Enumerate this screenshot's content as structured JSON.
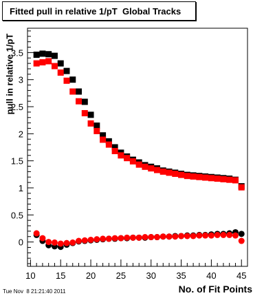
{
  "chart_data": {
    "type": "scatter",
    "title": "Fitted pull in relative 1/pT  Global Tracks",
    "xlabel": "No. of Fit Points",
    "ylabel": "pull in relative 1/pT",
    "xlim": [
      9.5,
      46
    ],
    "ylim": [
      -0.45,
      3.95
    ],
    "x_ticks": [
      10,
      15,
      20,
      25,
      30,
      35,
      40,
      45
    ],
    "y_ticks": [
      0,
      0.5,
      1,
      1.5,
      2,
      2.5,
      3,
      3.5
    ],
    "x_tick_labels": [
      "10",
      "15",
      "20",
      "25",
      "30",
      "35",
      "40",
      "45"
    ],
    "y_tick_labels": [
      "0",
      "0.5",
      "1",
      "1.5",
      "2",
      "2.5",
      "3",
      "3.5"
    ],
    "grid": false,
    "x": [
      11,
      12,
      13,
      14,
      15,
      16,
      17,
      18,
      19,
      20,
      21,
      22,
      23,
      24,
      25,
      26,
      27,
      28,
      29,
      30,
      31,
      32,
      33,
      34,
      35,
      36,
      37,
      38,
      39,
      40,
      41,
      42,
      43,
      44,
      45
    ],
    "series": [
      {
        "color": "#000000",
        "marker": "square",
        "values": [
          3.46,
          3.48,
          3.47,
          3.44,
          3.3,
          3.16,
          3.0,
          2.78,
          2.59,
          2.35,
          2.15,
          1.97,
          1.86,
          1.75,
          1.65,
          1.58,
          1.52,
          1.47,
          1.42,
          1.39,
          1.36,
          1.32,
          1.3,
          1.28,
          1.26,
          1.24,
          1.23,
          1.22,
          1.21,
          1.2,
          1.19,
          1.18,
          1.17,
          1.15,
          1.03
        ]
      },
      {
        "color": "#ff0000",
        "marker": "square",
        "values": [
          3.3,
          3.32,
          3.34,
          3.25,
          3.13,
          2.98,
          2.78,
          2.6,
          2.38,
          2.19,
          2.05,
          1.89,
          1.8,
          1.68,
          1.6,
          1.55,
          1.49,
          1.43,
          1.39,
          1.36,
          1.33,
          1.3,
          1.28,
          1.26,
          1.24,
          1.22,
          1.21,
          1.2,
          1.19,
          1.18,
          1.17,
          1.16,
          1.15,
          1.14,
          1.01
        ]
      },
      {
        "color": "#000000",
        "marker": "circle",
        "values": [
          0.13,
          0.02,
          -0.06,
          -0.08,
          -0.09,
          -0.05,
          -0.02,
          0.01,
          0.02,
          0.03,
          0.04,
          0.05,
          0.06,
          0.06,
          0.07,
          0.07,
          0.08,
          0.08,
          0.08,
          0.09,
          0.09,
          0.1,
          0.1,
          0.11,
          0.11,
          0.12,
          0.12,
          0.13,
          0.13,
          0.14,
          0.15,
          0.15,
          0.16,
          0.18,
          0.15
        ]
      },
      {
        "color": "#ff0000",
        "marker": "circle",
        "values": [
          0.16,
          0.07,
          0.0,
          -0.01,
          -0.03,
          -0.02,
          -0.01,
          0.02,
          0.03,
          0.04,
          0.05,
          0.06,
          0.06,
          0.07,
          0.07,
          0.08,
          0.08,
          0.08,
          0.09,
          0.09,
          0.09,
          0.1,
          0.1,
          0.1,
          0.11,
          0.11,
          0.11,
          0.12,
          0.12,
          0.12,
          0.13,
          0.13,
          0.13,
          0.12,
          0.02
        ]
      }
    ]
  },
  "footer": {
    "timestamp": "Tue Nov  8 21:21:40 2011"
  }
}
